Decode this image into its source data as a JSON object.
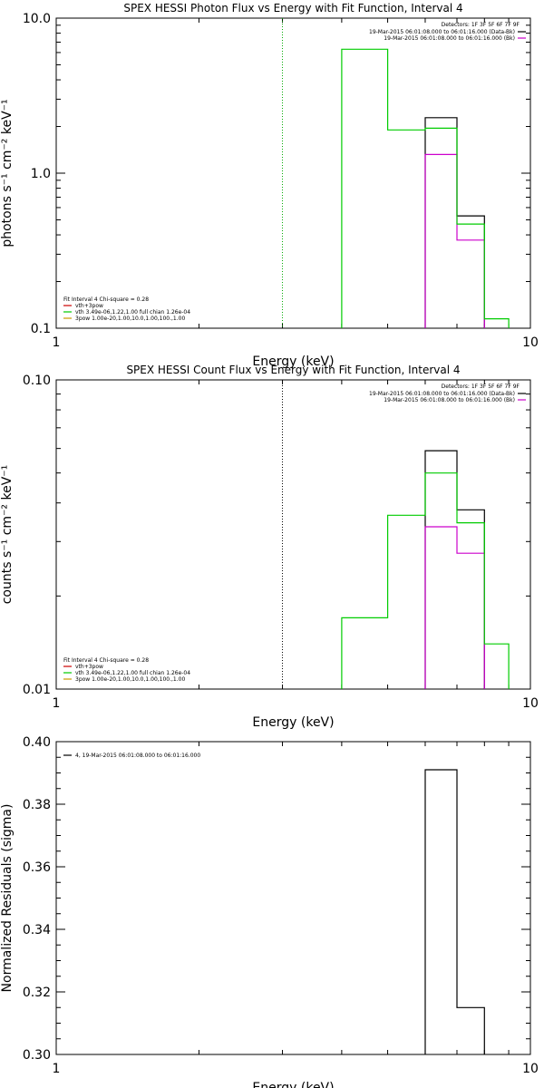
{
  "chart_data": [
    {
      "type": "line",
      "title": "SPEX HESSI Photon Flux vs Energy with Fit Function, Interval 4",
      "xlabel": "Energy (keV)",
      "ylabel": "photons s⁻¹ cm⁻² keV⁻¹",
      "xscale": "log",
      "yscale": "log",
      "xlim": [
        1,
        10
      ],
      "ylim": [
        0.1,
        10
      ],
      "xticks": [
        {
          "v": 1,
          "label": "1"
        },
        {
          "v": 10,
          "label": "10"
        }
      ],
      "yticks": [
        {
          "v": 0.1,
          "label": "0.1"
        },
        {
          "v": 1,
          "label": "1.0"
        },
        {
          "v": 10,
          "label": "10.0"
        }
      ],
      "vline": {
        "x": 3,
        "color": "#00aa00",
        "style": "dotted"
      },
      "detectors": "Detectors: 1F 3F 5F 6F 7F 9F",
      "time_lines": [
        {
          "text": "19-Mar-2015 06:01:08.000 to 06:01:16.000 (Data-Bk)",
          "color": "#000000"
        },
        {
          "text": "19-Mar-2015 06:01:08.000 to 06:01:16.000 (Bk)",
          "color": "#cc00cc"
        }
      ],
      "legend_header": "Fit Interval  4    Chi-square = 0.28",
      "legend": [
        {
          "text": "vth+3pow",
          "color": "#cc0000"
        },
        {
          "text": "vth 3.49e-06,1.22,1.00  full chian 1.26e-04",
          "color": "#00cc00"
        },
        {
          "text": "3pow 1.00e-20,1.00,10.0,1.00,100.,1.00",
          "color": "#cc9900"
        }
      ],
      "series": [
        {
          "name": "Data-Bk",
          "color": "#000000",
          "steps": [
            [
              6,
              7,
              2.28
            ],
            [
              7,
              8,
              0.53
            ]
          ]
        },
        {
          "name": "Bk",
          "color": "#cc00cc",
          "steps": [
            [
              6,
              7,
              1.32
            ],
            [
              7,
              8,
              0.37
            ]
          ]
        },
        {
          "name": "vth",
          "color": "#00cc00",
          "steps": [
            [
              4,
              5,
              6.3
            ],
            [
              5,
              6,
              1.9
            ],
            [
              6,
              7,
              1.95
            ],
            [
              7,
              8,
              0.47
            ],
            [
              8,
              9,
              0.115
            ]
          ]
        }
      ]
    },
    {
      "type": "line",
      "title": "SPEX HESSI Count Flux vs Energy with Fit Function, Interval 4",
      "xlabel": "Energy (keV)",
      "ylabel": "counts s⁻¹ cm⁻² keV⁻¹",
      "xscale": "log",
      "yscale": "log",
      "xlim": [
        1,
        10
      ],
      "ylim": [
        0.01,
        0.1
      ],
      "xticks": [
        {
          "v": 1,
          "label": "1"
        },
        {
          "v": 10,
          "label": "10"
        }
      ],
      "yticks": [
        {
          "v": 0.01,
          "label": "0.01"
        },
        {
          "v": 0.1,
          "label": "0.10"
        }
      ],
      "vline": {
        "x": 3,
        "color": "#000000",
        "style": "dotted"
      },
      "detectors": "Detectors: 1F 3F 5F 6F 7F 9F",
      "time_lines": [
        {
          "text": "19-Mar-2015 06:01:08.000 to 06:01:16.000 (Data-Bk)",
          "color": "#000000"
        },
        {
          "text": "19-Mar-2015 06:01:08.000 to 06:01:16.000 (Bk)",
          "color": "#cc00cc"
        }
      ],
      "legend_header": "Fit Interval  4    Chi-square = 0.28",
      "legend": [
        {
          "text": "vth+3pow",
          "color": "#cc0000"
        },
        {
          "text": "vth 3.49e-06,1.22,1.00  full chian 1.26e-04",
          "color": "#00cc00"
        },
        {
          "text": "3pow 1.00e-20,1.00,10.0,1.00,100.,1.00",
          "color": "#cc9900"
        }
      ],
      "series": [
        {
          "name": "Data-Bk",
          "color": "#000000",
          "steps": [
            [
              6,
              7,
              0.059
            ],
            [
              7,
              8,
              0.038
            ]
          ]
        },
        {
          "name": "Bk",
          "color": "#cc00cc",
          "steps": [
            [
              6,
              7,
              0.0335
            ],
            [
              7,
              8,
              0.0275
            ]
          ]
        },
        {
          "name": "vth",
          "color": "#00cc00",
          "steps": [
            [
              4,
              5,
              0.017
            ],
            [
              5,
              6,
              0.0365
            ],
            [
              6,
              7,
              0.05
            ],
            [
              7,
              8,
              0.0345
            ],
            [
              8,
              9,
              0.014
            ]
          ]
        }
      ]
    },
    {
      "type": "line",
      "title": "",
      "xlabel": "Energy (keV)",
      "ylabel": "Normalized Residuals (sigma)",
      "xscale": "log",
      "yscale": "linear",
      "xlim": [
        1,
        10
      ],
      "ylim": [
        0.3,
        0.4
      ],
      "xticks": [
        {
          "v": 1,
          "label": "1"
        },
        {
          "v": 10,
          "label": "10"
        }
      ],
      "yticks": [
        {
          "v": 0.3,
          "label": "0.30"
        },
        {
          "v": 0.32,
          "label": "0.32"
        },
        {
          "v": 0.34,
          "label": "0.34"
        },
        {
          "v": 0.36,
          "label": "0.36"
        },
        {
          "v": 0.38,
          "label": "0.38"
        },
        {
          "v": 0.4,
          "label": "0.40"
        }
      ],
      "legend": [
        {
          "text": "4, 19-Mar-2015 06:01:08.000 to 06:01:16.000",
          "color": "#000000"
        }
      ],
      "series": [
        {
          "name": "",
          "color": "#000000",
          "steps": [
            [
              6,
              7,
              0.391
            ],
            [
              7,
              8,
              0.315
            ]
          ]
        }
      ]
    }
  ]
}
